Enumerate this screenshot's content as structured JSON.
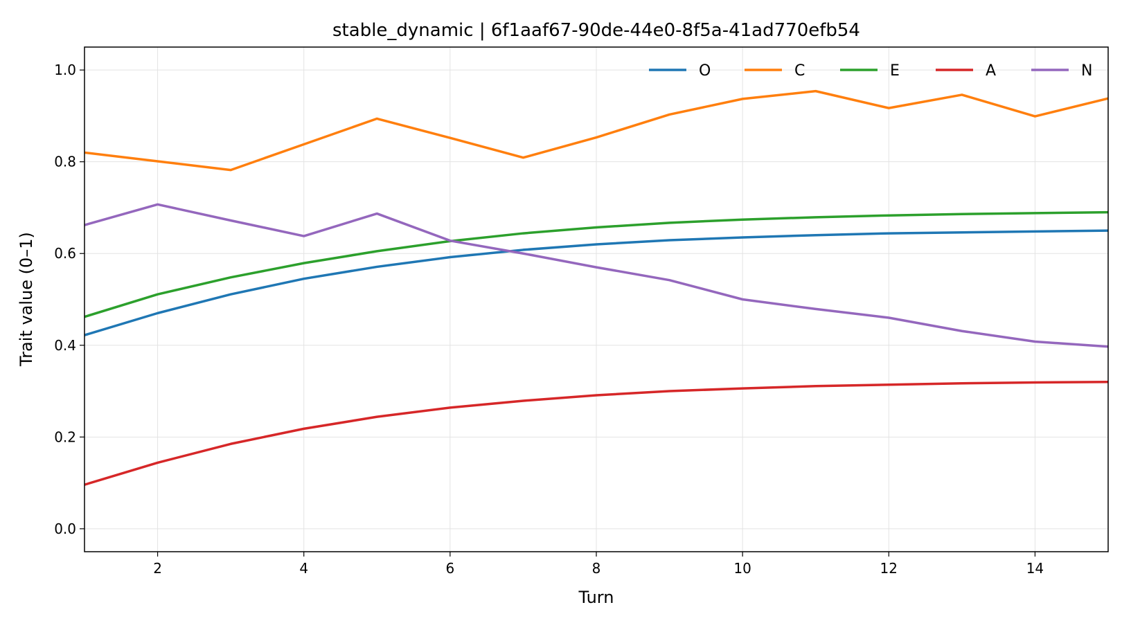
{
  "chart_data": {
    "type": "line",
    "title": "stable_dynamic | 6f1aaf67-90de-44e0-8f5a-41ad770efb54",
    "xlabel": "Turn",
    "ylabel": "Trait value (0–1)",
    "xlim": [
      1,
      15
    ],
    "ylim": [
      -0.05,
      1.05
    ],
    "xticks": [
      2,
      4,
      6,
      8,
      10,
      12,
      14
    ],
    "yticks": [
      0.0,
      0.2,
      0.4,
      0.6,
      0.8,
      1.0
    ],
    "ytick_labels": [
      "0.0",
      "0.2",
      "0.4",
      "0.6",
      "0.8",
      "1.0"
    ],
    "grid": true,
    "legend_position": "top-right",
    "x": [
      1,
      2,
      3,
      4,
      5,
      6,
      7,
      8,
      9,
      10,
      11,
      12,
      13,
      14,
      15
    ],
    "series": [
      {
        "name": "O",
        "color": "#1f77b4",
        "values": [
          0.422,
          0.47,
          0.511,
          0.545,
          0.571,
          0.592,
          0.608,
          0.62,
          0.629,
          0.635,
          0.64,
          0.644,
          0.646,
          0.648,
          0.65
        ]
      },
      {
        "name": "C",
        "color": "#ff7f0e",
        "values": [
          0.82,
          0.801,
          0.782,
          0.838,
          0.894,
          0.852,
          0.809,
          0.853,
          0.903,
          0.937,
          0.954,
          0.917,
          0.946,
          0.899,
          0.938
        ]
      },
      {
        "name": "E",
        "color": "#2ca02c",
        "values": [
          0.462,
          0.511,
          0.548,
          0.579,
          0.605,
          0.627,
          0.644,
          0.657,
          0.667,
          0.674,
          0.679,
          0.683,
          0.686,
          0.688,
          0.69
        ]
      },
      {
        "name": "A",
        "color": "#d62728",
        "values": [
          0.096,
          0.144,
          0.185,
          0.218,
          0.244,
          0.264,
          0.279,
          0.291,
          0.3,
          0.306,
          0.311,
          0.314,
          0.317,
          0.319,
          0.32
        ]
      },
      {
        "name": "N",
        "color": "#9467bd",
        "values": [
          0.662,
          0.707,
          0.672,
          0.638,
          0.687,
          0.628,
          0.6,
          0.57,
          0.542,
          0.5,
          0.479,
          0.46,
          0.431,
          0.408,
          0.397
        ]
      }
    ]
  }
}
